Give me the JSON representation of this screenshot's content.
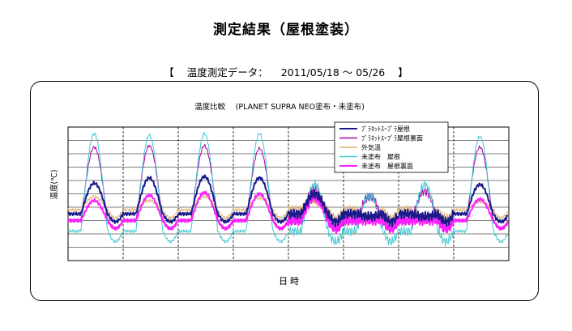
{
  "page": {
    "title": "測定結果（屋根塗装）",
    "period": {
      "open": "【",
      "label": "温度測定データ：",
      "range": "2011/05/18 ～ 05/26",
      "close": "】"
    }
  },
  "chart_data": {
    "type": "line",
    "title": "温度比較　 (PLANET SUPRA NEO塗布・未塗布)",
    "xlabel": "日時",
    "ylabel": "温度(℃)",
    "grid": true,
    "days": 8,
    "ylim": [
      0,
      100
    ],
    "legend_position": "top-right",
    "series": [
      {
        "name": "ﾌﾟﾗﾈｯﾄｽｰﾌﾟﾗ屋根",
        "color": "#1a1a8c",
        "width": 2.0
      },
      {
        "name": "ﾌﾟﾗﾈｯﾄｽｰﾌﾟﾗ屋根裏面",
        "color": "#aa00aa",
        "width": 1.0
      },
      {
        "name": "外気温",
        "color": "#e0b070",
        "width": 1.0
      },
      {
        "name": "未塗布　屋根",
        "color": "#40c8d0",
        "width": 1.0
      },
      {
        "name": "未塗布　屋根裏面",
        "color": "#ff20ff",
        "width": 2.0
      }
    ],
    "daily_profile": {
      "day_start": 0.23,
      "day_end": 0.72,
      "night_level": [
        35,
        30,
        38,
        22,
        30
      ],
      "days": [
        {
          "peak": [
            58,
            85,
            48,
            95,
            45
          ]
        },
        {
          "peak": [
            62,
            86,
            45,
            94,
            49
          ]
        },
        {
          "peak": [
            63,
            86,
            48,
            95,
            51
          ]
        },
        {
          "peak": [
            62,
            84,
            47,
            95,
            50
          ]
        },
        {
          "peak": [
            50,
            54,
            45,
            57,
            47
          ]
        },
        {
          "peak": [
            33,
            48,
            30,
            49,
            30
          ]
        },
        {
          "peak": [
            33,
            52,
            30,
            57,
            30
          ]
        },
        {
          "peak": [
            57,
            85,
            44,
            93,
            46
          ]
        }
      ]
    }
  }
}
